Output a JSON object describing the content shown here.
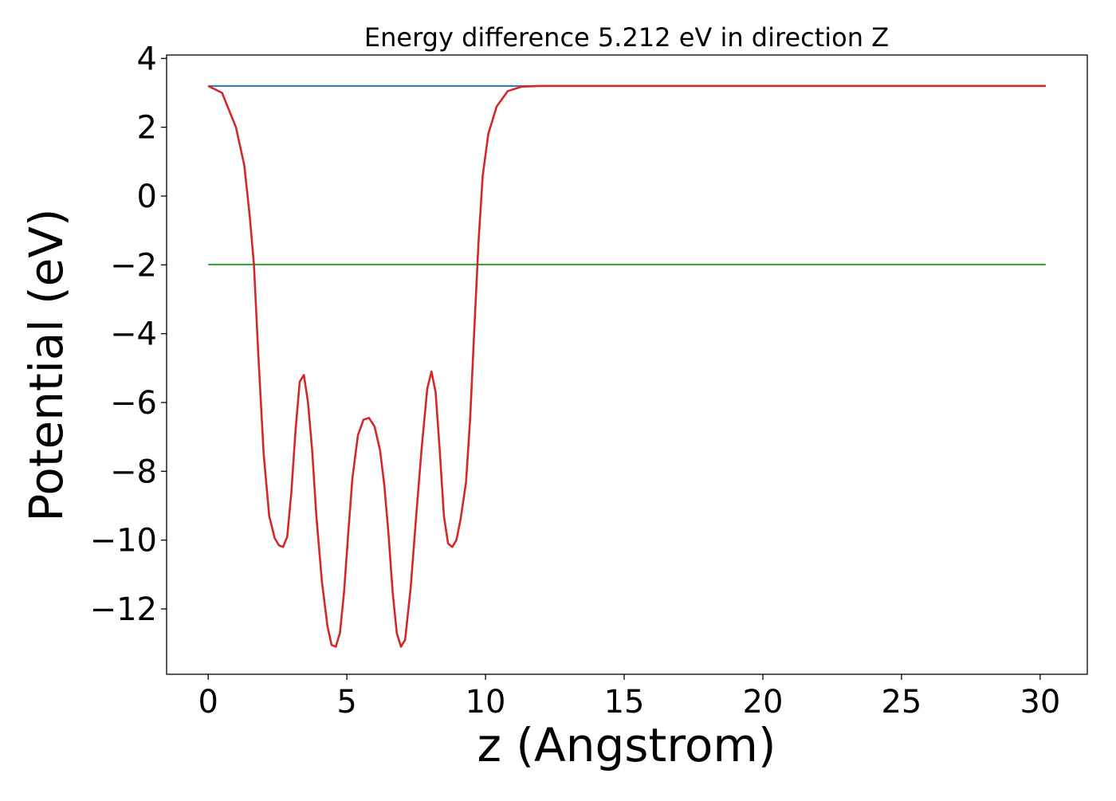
{
  "chart_data": {
    "type": "line",
    "title": "Energy difference 5.212 eV in direction Z",
    "xlabel": "z (Angstrom)",
    "ylabel": "Potential (eV)",
    "xlim": [
      -1.5,
      31.7
    ],
    "ylim": [
      -13.9,
      4.1
    ],
    "xticks": [
      0,
      5,
      10,
      15,
      20,
      25,
      30
    ],
    "yticks": [
      4,
      2,
      0,
      -2,
      -4,
      -6,
      -8,
      -10,
      -12
    ],
    "xtick_labels": [
      "0",
      "5",
      "10",
      "15",
      "20",
      "25",
      "30"
    ],
    "ytick_labels": [
      "4",
      "2",
      "0",
      "−2",
      "−4",
      "−6",
      "−8",
      "−10",
      "−12"
    ],
    "grid": false,
    "legend": "none",
    "series": [
      {
        "color": "#1f77b4",
        "x": [
          0,
          30.2
        ],
        "y": [
          3.2,
          3.2
        ]
      },
      {
        "color": "#2ca02c",
        "x": [
          0,
          30.2
        ],
        "y": [
          -1.99,
          -1.99
        ]
      },
      {
        "color": "#d62728",
        "x": [
          0,
          0.5,
          1.0,
          1.3,
          1.5,
          1.65,
          1.8,
          2.0,
          2.2,
          2.4,
          2.55,
          2.7,
          2.85,
          3.0,
          3.15,
          3.3,
          3.45,
          3.6,
          3.75,
          3.9,
          4.1,
          4.3,
          4.45,
          4.6,
          4.75,
          4.9,
          5.05,
          5.2,
          5.4,
          5.6,
          5.8,
          6.0,
          6.2,
          6.35,
          6.5,
          6.65,
          6.8,
          6.95,
          7.1,
          7.3,
          7.5,
          7.7,
          7.9,
          8.05,
          8.2,
          8.35,
          8.5,
          8.65,
          8.8,
          8.95,
          9.1,
          9.3,
          9.45,
          9.6,
          9.75,
          9.9,
          10.1,
          10.4,
          10.8,
          11.3,
          12.0,
          13.0,
          15.0,
          20.0,
          25.0,
          30.2
        ],
        "y": [
          3.2,
          3.0,
          2.0,
          0.9,
          -0.6,
          -2.0,
          -4.5,
          -7.5,
          -9.3,
          -9.95,
          -10.15,
          -10.2,
          -9.9,
          -8.6,
          -6.8,
          -5.4,
          -5.2,
          -6.0,
          -7.4,
          -9.3,
          -11.2,
          -12.5,
          -13.05,
          -13.1,
          -12.7,
          -11.5,
          -9.8,
          -8.2,
          -6.95,
          -6.5,
          -6.45,
          -6.7,
          -7.4,
          -8.4,
          -9.8,
          -11.5,
          -12.7,
          -13.1,
          -12.9,
          -11.4,
          -9.3,
          -7.3,
          -5.6,
          -5.1,
          -5.7,
          -7.4,
          -9.3,
          -10.1,
          -10.2,
          -10.0,
          -9.4,
          -8.3,
          -6.4,
          -3.8,
          -1.3,
          0.6,
          1.8,
          2.6,
          3.05,
          3.18,
          3.2,
          3.2,
          3.2,
          3.2,
          3.2,
          3.2
        ]
      }
    ]
  }
}
